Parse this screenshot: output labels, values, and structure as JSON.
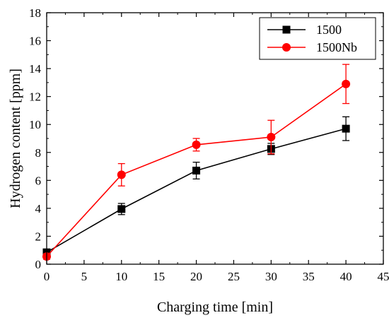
{
  "chart_data": {
    "type": "line",
    "title": "",
    "xlabel": "Charging time [min]",
    "ylabel": "Hydrogen content [ppm]",
    "xlim": [
      0,
      45
    ],
    "ylim": [
      0,
      18
    ],
    "xticks": [
      0,
      5,
      10,
      15,
      20,
      25,
      30,
      35,
      40,
      45
    ],
    "yticks": [
      0,
      2,
      4,
      6,
      8,
      10,
      12,
      14,
      16,
      18
    ],
    "grid": false,
    "legend_position": "top-right",
    "series": [
      {
        "name": "1500",
        "color": "#000000",
        "marker": "square",
        "x": [
          0,
          10,
          20,
          30,
          40
        ],
        "y": [
          0.85,
          3.95,
          6.7,
          8.25,
          9.7
        ],
        "error": [
          0.2,
          0.4,
          0.6,
          0.4,
          0.85
        ]
      },
      {
        "name": "1500Nb",
        "color": "#ff0000",
        "marker": "circle",
        "x": [
          0,
          10,
          20,
          30,
          40
        ],
        "y": [
          0.55,
          6.4,
          8.55,
          9.1,
          12.9
        ],
        "error": [
          0.2,
          0.8,
          0.45,
          1.2,
          1.4
        ]
      }
    ]
  }
}
